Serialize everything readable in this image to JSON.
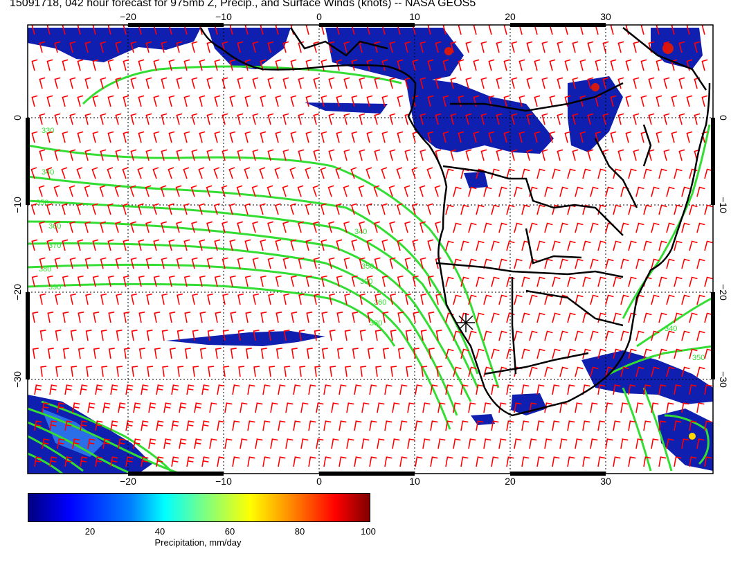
{
  "title": "15091718, 042 hour forecast for 975mb Z, Precip., and Surface Winds (knots) -- NASA GEOS5",
  "axes": {
    "lon_ticks": [
      "−20",
      "−10",
      "0",
      "10",
      "20",
      "30"
    ],
    "lat_ticks": [
      "0",
      "−10",
      "−20",
      "−30"
    ],
    "lon_range": [
      -31,
      41
    ],
    "lat_range": [
      -40,
      10
    ]
  },
  "contours": {
    "color": "#33dd33",
    "labels": [
      "330",
      "340",
      "350",
      "360",
      "370",
      "380",
      "390",
      "340",
      "350",
      "390",
      "360",
      "380",
      "340",
      "350"
    ]
  },
  "winds": {
    "color": "#ff0000",
    "units": "knots"
  },
  "precipitation": {
    "colorbar_ticks": [
      "20",
      "40",
      "60",
      "80",
      "100"
    ],
    "colorbar_label": "Precipitation, mm/day",
    "range": [
      0,
      100
    ]
  }
}
